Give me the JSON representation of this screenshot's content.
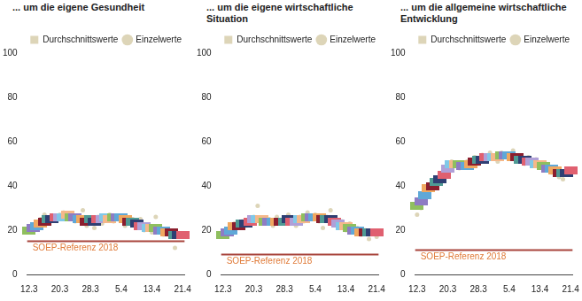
{
  "chart_data": [
    {
      "type": "scatter",
      "title": "... um die eigene Gesundheit",
      "categories": [
        "12.3",
        null,
        null,
        null,
        null,
        null,
        null,
        null,
        "20.3",
        null,
        null,
        null,
        null,
        null,
        null,
        null,
        "28.3",
        null,
        null,
        null,
        null,
        null,
        null,
        null,
        "5.4",
        null,
        null,
        null,
        null,
        null,
        null,
        null,
        "13.4",
        null,
        null,
        null,
        null,
        null,
        null,
        null,
        "21.4"
      ],
      "series": [
        {
          "name": "Durchschnittswerte",
          "color": "#ddd5b8",
          "marker": "rect",
          "colors": [
            "#8fbf5f",
            "#8e7cc3",
            "#5fa8d8",
            "#f0a860",
            "#8b1e2e",
            "#4f9a94",
            "#2f3f73",
            "#e06070",
            "#b0a0d8",
            "#80c8e8",
            "#f5b88a",
            "#8fbf5f",
            "#8e7cc3",
            "#5fa8d8",
            "#f0a860",
            "#8b1e2e",
            "#4f9a94",
            "#2f3f73",
            "#e06070",
            "#b0a0d8",
            "#80c8e8",
            "#f5b88a",
            "#8fbf5f",
            "#8e7cc3",
            "#5fa8d8",
            "#f0a860",
            "#8b1e2e",
            "#4f9a94",
            "#2f3f73",
            "#e06070",
            "#b0a0d8",
            "#80c8e8",
            "#f5b88a",
            "#8fbf5f",
            "#8e7cc3",
            "#5fa8d8",
            "#f0a860",
            "#8b1e2e",
            "#4f9a94",
            "#2f3f73",
            "#e06070"
          ],
          "values": [
            20,
            21,
            22,
            23,
            24,
            25,
            25,
            26,
            26,
            26,
            27,
            26,
            26,
            25,
            25,
            24,
            25,
            24,
            25,
            25,
            26,
            25,
            26,
            26,
            26,
            25,
            24,
            24,
            23,
            22,
            22,
            21,
            21,
            21,
            20,
            20,
            19,
            19,
            18,
            18,
            18
          ]
        },
        {
          "name": "Einzelwerte",
          "color": "#ddd5b8",
          "marker": "circle",
          "values": [
            19,
            22,
            21,
            25,
            27,
            24,
            26,
            25,
            27,
            28,
            25,
            27,
            24,
            26,
            29,
            22,
            24,
            21,
            26,
            23,
            25,
            27,
            24,
            25,
            26,
            22,
            23,
            25,
            21,
            25,
            20,
            22,
            19,
            26,
            21,
            18,
            20,
            17,
            12,
            18,
            17
          ]
        }
      ],
      "annotations": [
        {
          "label": "SOEP-Referenz 2018",
          "value": 15,
          "color": "#a8443c"
        }
      ],
      "ylim": [
        0,
        100
      ],
      "yticks": [
        0,
        20,
        40,
        60,
        80,
        100
      ],
      "grid": false,
      "legend": "top"
    },
    {
      "type": "scatter",
      "title": "... um die eigene wirtschaftliche Situation",
      "categories": [
        "12.3",
        null,
        null,
        null,
        null,
        null,
        null,
        null,
        "20.3",
        null,
        null,
        null,
        null,
        null,
        null,
        null,
        "28.3",
        null,
        null,
        null,
        null,
        null,
        null,
        null,
        "5.4",
        null,
        null,
        null,
        null,
        null,
        null,
        null,
        "13.4",
        null,
        null,
        null,
        null,
        null,
        null,
        null,
        "21.4"
      ],
      "series": [
        {
          "name": "Durchschnittswerte",
          "color": "#ddd5b8",
          "marker": "rect",
          "colors": [
            "#8fbf5f",
            "#8e7cc3",
            "#5fa8d8",
            "#f0a860",
            "#8b1e2e",
            "#4f9a94",
            "#2f3f73",
            "#e06070",
            "#b0a0d8",
            "#80c8e8",
            "#f5b88a",
            "#8fbf5f",
            "#8e7cc3",
            "#5fa8d8",
            "#f0a860",
            "#8b1e2e",
            "#4f9a94",
            "#2f3f73",
            "#e06070",
            "#b0a0d8",
            "#80c8e8",
            "#f5b88a",
            "#8fbf5f",
            "#8e7cc3",
            "#5fa8d8",
            "#f0a860",
            "#8b1e2e",
            "#4f9a94",
            "#2f3f73",
            "#e06070",
            "#b0a0d8",
            "#80c8e8",
            "#f5b88a",
            "#8fbf5f",
            "#8e7cc3",
            "#5fa8d8",
            "#f0a860",
            "#8b1e2e",
            "#4f9a94",
            "#2f3f73",
            "#e06070"
          ],
          "values": [
            18,
            19,
            20,
            22,
            22,
            23,
            23,
            24,
            25,
            25,
            25,
            24,
            24,
            24,
            24,
            24,
            24,
            25,
            24,
            24,
            25,
            25,
            26,
            26,
            26,
            26,
            25,
            25,
            25,
            24,
            23,
            22,
            22,
            21,
            20,
            20,
            19,
            19,
            19,
            19,
            19
          ]
        },
        {
          "name": "Einzelwerte",
          "color": "#ddd5b8",
          "marker": "circle",
          "values": [
            17,
            19,
            20,
            23,
            21,
            24,
            22,
            25,
            26,
            31,
            24,
            23,
            25,
            22,
            26,
            24,
            23,
            27,
            25,
            22,
            26,
            24,
            28,
            25,
            27,
            24,
            21,
            26,
            29,
            23,
            22,
            24,
            20,
            23,
            19,
            21,
            18,
            20,
            16,
            19,
            17
          ]
        }
      ],
      "annotations": [
        {
          "label": "SOEP-Referenz 2018",
          "value": 9,
          "color": "#a8443c"
        }
      ],
      "ylim": [
        0,
        100
      ],
      "yticks": [
        0,
        20,
        40,
        60,
        80,
        100
      ],
      "grid": false,
      "legend": "top"
    },
    {
      "type": "scatter",
      "title": "... um die allgemeine wirtschaftliche Entwicklung",
      "categories": [
        "12.3",
        null,
        null,
        null,
        null,
        null,
        null,
        null,
        "20.3",
        null,
        null,
        null,
        null,
        null,
        null,
        null,
        "28.3",
        null,
        null,
        null,
        null,
        null,
        null,
        null,
        "5.4",
        null,
        null,
        null,
        null,
        null,
        null,
        null,
        "13.4",
        null,
        null,
        null,
        null,
        null,
        null,
        null,
        "21.4"
      ],
      "series": [
        {
          "name": "Durchschnittswerte",
          "color": "#ddd5b8",
          "marker": "rect",
          "colors": [
            "#8fbf5f",
            "#8e7cc3",
            "#5fa8d8",
            "#f0a860",
            "#8b1e2e",
            "#4f9a94",
            "#2f3f73",
            "#e06070",
            "#b0a0d8",
            "#80c8e8",
            "#f5b88a",
            "#8fbf5f",
            "#8e7cc3",
            "#5fa8d8",
            "#f0a860",
            "#8b1e2e",
            "#4f9a94",
            "#2f3f73",
            "#e06070",
            "#b0a0d8",
            "#80c8e8",
            "#f5b88a",
            "#8fbf5f",
            "#8e7cc3",
            "#5fa8d8",
            "#f0a860",
            "#8b1e2e",
            "#4f9a94",
            "#2f3f73",
            "#e06070",
            "#b0a0d8",
            "#80c8e8",
            "#f5b88a",
            "#8fbf5f",
            "#8e7cc3",
            "#5fa8d8",
            "#f0a860",
            "#8b1e2e",
            "#4f9a94",
            "#2f3f73",
            "#e06070"
          ],
          "values": [
            31,
            33,
            36,
            39,
            40,
            42,
            43,
            45,
            48,
            50,
            50,
            50,
            49,
            49,
            50,
            51,
            52,
            52,
            53,
            53,
            53,
            53,
            54,
            54,
            54,
            53,
            53,
            52,
            52,
            51,
            51,
            50,
            50,
            49,
            48,
            48,
            47,
            46,
            46,
            46,
            47
          ]
        },
        {
          "name": "Einzelwerte",
          "color": "#ddd5b8",
          "marker": "circle",
          "values": [
            27,
            30,
            34,
            37,
            40,
            41,
            44,
            45,
            47,
            51,
            49,
            48,
            50,
            51,
            49,
            53,
            50,
            54,
            52,
            55,
            53,
            51,
            55,
            54,
            53,
            56,
            52,
            51,
            50,
            53,
            50,
            52,
            49,
            47,
            49,
            46,
            45,
            44,
            43,
            47,
            45
          ]
        }
      ],
      "annotations": [
        {
          "label": "SOEP-Referenz 2018",
          "value": 11,
          "color": "#a8443c"
        }
      ],
      "ylim": [
        0,
        100
      ],
      "yticks": [
        0,
        20,
        40,
        60,
        80,
        100
      ],
      "grid": false,
      "legend": "top"
    }
  ]
}
